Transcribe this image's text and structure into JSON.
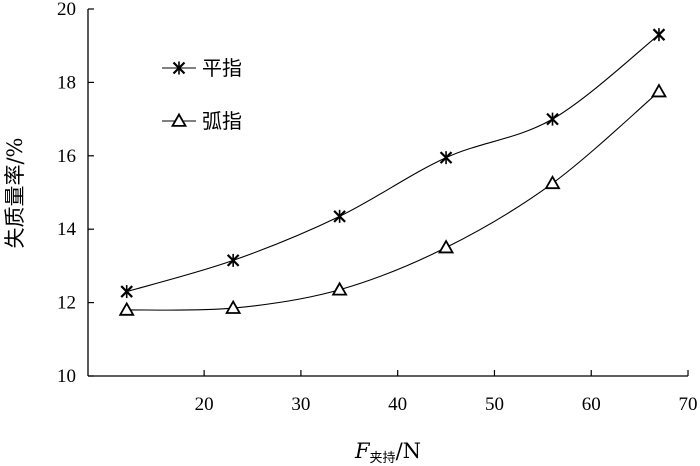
{
  "chart_data": {
    "type": "line",
    "x": [
      12,
      23,
      34,
      45,
      56,
      67
    ],
    "series": [
      {
        "name": "平指",
        "marker": "asterisk",
        "values": [
          12.3,
          13.15,
          14.35,
          15.95,
          17.0,
          19.3
        ]
      },
      {
        "name": "弧指",
        "marker": "triangle",
        "values": [
          11.8,
          11.85,
          12.35,
          13.5,
          15.25,
          17.75
        ]
      }
    ],
    "title": "",
    "xlabel": {
      "main": "F",
      "sub": "夹持",
      "unit": "/N"
    },
    "ylabel": "失质量率/%",
    "xlim": [
      8,
      70
    ],
    "ylim": [
      10,
      20
    ],
    "xticks": [
      20,
      30,
      40,
      50,
      60,
      70
    ],
    "yticks": [
      10,
      12,
      14,
      16,
      18,
      20
    ],
    "grid": false,
    "legend": "top-left",
    "line_color": "#000000"
  }
}
